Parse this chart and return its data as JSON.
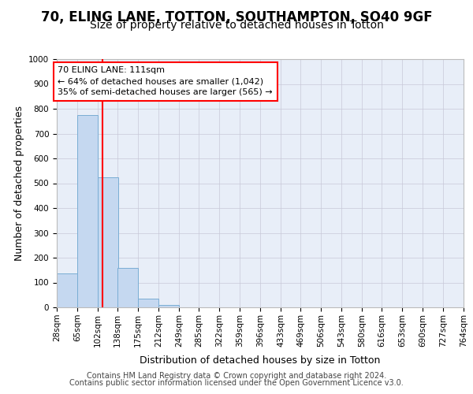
{
  "title": "70, ELING LANE, TOTTON, SOUTHAMPTON, SO40 9GF",
  "subtitle": "Size of property relative to detached houses in Totton",
  "xlabel": "Distribution of detached houses by size in Totton",
  "ylabel": "Number of detached properties",
  "footer_line1": "Contains HM Land Registry data © Crown copyright and database right 2024.",
  "footer_line2": "Contains public sector information licensed under the Open Government Licence v3.0.",
  "bin_edges": [
    28,
    65,
    102,
    138,
    175,
    212,
    249,
    285,
    322,
    359,
    396,
    433,
    469,
    506,
    543,
    580,
    616,
    653,
    690,
    727,
    764
  ],
  "bar_heights": [
    135,
    775,
    525,
    160,
    35,
    10,
    0,
    0,
    0,
    0,
    0,
    0,
    0,
    0,
    0,
    0,
    0,
    0,
    0,
    0
  ],
  "bar_color": "#c5d8f0",
  "bar_edgecolor": "#7aadd4",
  "vline_x": 111,
  "vline_color": "red",
  "annotation_line1": "70 ELING LANE: 111sqm",
  "annotation_line2": "← 64% of detached houses are smaller (1,042)",
  "annotation_line3": "35% of semi-detached houses are larger (565) →",
  "ylim": [
    0,
    1000
  ],
  "yticks": [
    0,
    100,
    200,
    300,
    400,
    500,
    600,
    700,
    800,
    900,
    1000
  ],
  "plot_background_color": "#e8eef8",
  "grid_color": "#c8c8d8",
  "title_fontsize": 12,
  "subtitle_fontsize": 10,
  "axis_label_fontsize": 9,
  "tick_fontsize": 7.5,
  "annotation_fontsize": 8,
  "footer_fontsize": 7
}
